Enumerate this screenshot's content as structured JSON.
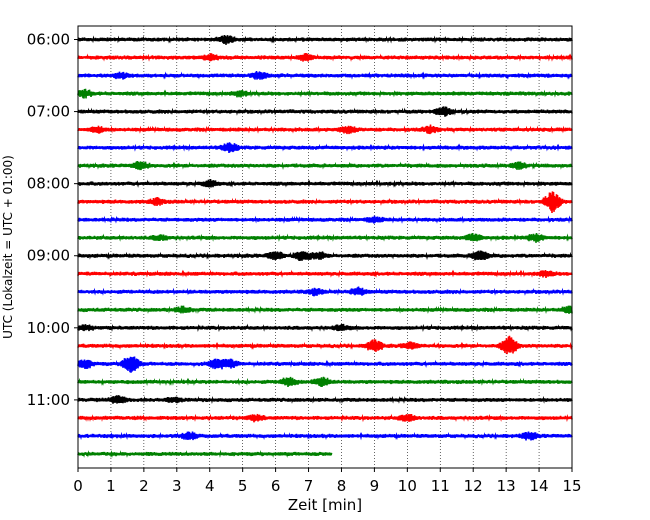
{
  "chart_data": {
    "type": "line",
    "title": "",
    "xlabel": "Zeit  [min]",
    "ylabel": "UTC (Lokalzeit = UTC + 01:00)",
    "xlim": [
      0,
      15
    ],
    "x_ticks": [
      "0",
      "1",
      "2",
      "3",
      "4",
      "5",
      "6",
      "7",
      "8",
      "9",
      "10",
      "11",
      "12",
      "13",
      "14",
      "15"
    ],
    "y_ticks": [
      {
        "label": "06:00",
        "trace": 0
      },
      {
        "label": "07:00",
        "trace": 4
      },
      {
        "label": "08:00",
        "trace": 8
      },
      {
        "label": "09:00",
        "trace": 12
      },
      {
        "label": "10:00",
        "trace": 16
      },
      {
        "label": "11:00",
        "trace": 20
      }
    ],
    "vertical_grid": "dotted",
    "trace_colors": [
      "#000000",
      "#ff0000",
      "#0000ff",
      "#008000"
    ],
    "traces": [
      {
        "start": "06:00",
        "color": "#000000",
        "end_min": 15,
        "events": [
          [
            4.5,
            0.6
          ]
        ]
      },
      {
        "start": "06:15",
        "color": "#ff0000",
        "end_min": 15,
        "events": [
          [
            4.0,
            0.5
          ],
          [
            6.9,
            0.5
          ]
        ]
      },
      {
        "start": "06:30",
        "color": "#0000ff",
        "end_min": 15,
        "events": [
          [
            1.3,
            0.5
          ],
          [
            5.5,
            0.6
          ]
        ]
      },
      {
        "start": "06:45",
        "color": "#008000",
        "end_min": 15,
        "events": [
          [
            0.2,
            0.6
          ],
          [
            4.9,
            0.5
          ]
        ]
      },
      {
        "start": "07:00",
        "color": "#000000",
        "end_min": 15,
        "events": [
          [
            11.1,
            0.8
          ]
        ]
      },
      {
        "start": "07:15",
        "color": "#ff0000",
        "end_min": 15,
        "events": [
          [
            0.6,
            0.5
          ],
          [
            8.2,
            0.6
          ],
          [
            10.7,
            0.6
          ]
        ]
      },
      {
        "start": "07:30",
        "color": "#0000ff",
        "end_min": 15,
        "events": [
          [
            4.6,
            0.8
          ]
        ]
      },
      {
        "start": "07:45",
        "color": "#008000",
        "end_min": 15,
        "events": [
          [
            1.9,
            0.7
          ],
          [
            13.4,
            0.5
          ]
        ]
      },
      {
        "start": "08:00",
        "color": "#000000",
        "end_min": 15,
        "events": [
          [
            4.0,
            0.5
          ]
        ]
      },
      {
        "start": "08:15",
        "color": "#ff0000",
        "end_min": 15,
        "events": [
          [
            2.4,
            0.5
          ],
          [
            14.4,
            1.8
          ]
        ]
      },
      {
        "start": "08:30",
        "color": "#0000ff",
        "end_min": 15,
        "events": [
          [
            9.0,
            0.4
          ]
        ]
      },
      {
        "start": "08:45",
        "color": "#008000",
        "end_min": 15,
        "events": [
          [
            2.5,
            0.4
          ],
          [
            12.0,
            0.6
          ],
          [
            13.9,
            0.6
          ]
        ]
      },
      {
        "start": "09:00",
        "color": "#000000",
        "end_min": 15,
        "events": [
          [
            6.0,
            0.7
          ],
          [
            6.8,
            0.8
          ],
          [
            7.3,
            0.6
          ],
          [
            12.2,
            0.9
          ]
        ]
      },
      {
        "start": "09:15",
        "color": "#ff0000",
        "end_min": 15,
        "events": [
          [
            14.2,
            0.5
          ]
        ]
      },
      {
        "start": "09:30",
        "color": "#0000ff",
        "end_min": 15,
        "events": [
          [
            7.2,
            0.5
          ],
          [
            8.5,
            0.6
          ]
        ]
      },
      {
        "start": "09:45",
        "color": "#008000",
        "end_min": 15,
        "events": [
          [
            3.2,
            0.5
          ],
          [
            14.9,
            0.5
          ]
        ]
      },
      {
        "start": "10:00",
        "color": "#000000",
        "end_min": 15,
        "events": [
          [
            0.2,
            0.4
          ],
          [
            8.0,
            0.4
          ]
        ]
      },
      {
        "start": "10:15",
        "color": "#ff0000",
        "end_min": 15,
        "events": [
          [
            9.0,
            1.0
          ],
          [
            13.1,
            1.6
          ],
          [
            10.1,
            0.5
          ]
        ]
      },
      {
        "start": "10:30",
        "color": "#0000ff",
        "end_min": 15,
        "events": [
          [
            0.2,
            0.8
          ],
          [
            1.6,
            1.6
          ],
          [
            4.2,
            0.8
          ],
          [
            4.6,
            0.7
          ]
        ]
      },
      {
        "start": "10:45",
        "color": "#008000",
        "end_min": 15,
        "events": [
          [
            6.4,
            0.7
          ],
          [
            7.4,
            0.8
          ]
        ]
      },
      {
        "start": "11:00",
        "color": "#000000",
        "end_min": 15,
        "events": [
          [
            1.2,
            0.7
          ],
          [
            2.9,
            0.4
          ]
        ]
      },
      {
        "start": "11:15",
        "color": "#ff0000",
        "end_min": 15,
        "events": [
          [
            5.4,
            0.5
          ],
          [
            10.0,
            0.6
          ]
        ]
      },
      {
        "start": "11:30",
        "color": "#0000ff",
        "end_min": 15,
        "events": [
          [
            3.4,
            0.6
          ],
          [
            13.7,
            0.6
          ]
        ]
      },
      {
        "start": "11:45",
        "color": "#008000",
        "end_min": 7.7,
        "events": []
      }
    ]
  }
}
